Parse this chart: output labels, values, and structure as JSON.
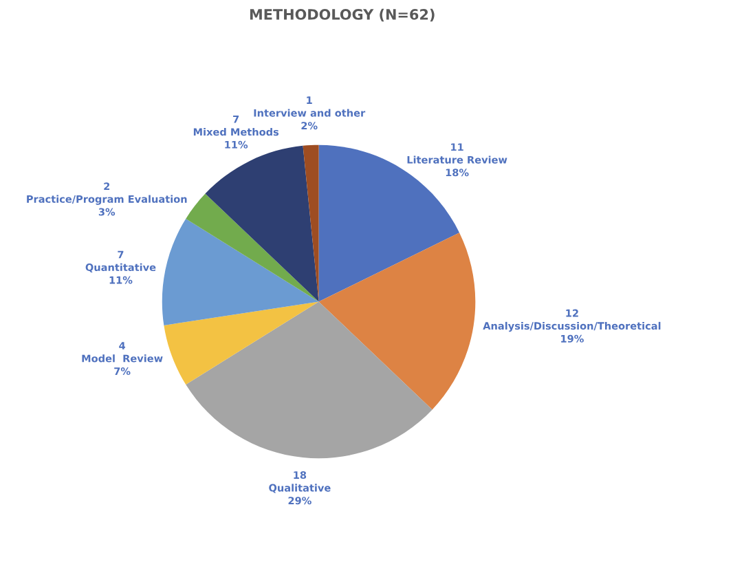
{
  "chart_data": {
    "type": "pie",
    "title": "METHODOLOGY (N=62)",
    "categories": [
      "Literature Review",
      "Analysis/Discussion/Theoretical",
      "Qualitative",
      "Model  Review",
      "Quantitative",
      "Practice/Program Evaluation",
      "Mixed Methods",
      "Interview and other"
    ],
    "values": [
      11,
      12,
      18,
      4,
      7,
      2,
      7,
      1
    ],
    "colors": [
      "#4f71be",
      "#dd8344",
      "#a5a5a5",
      "#f3c243",
      "#6b9bd2",
      "#72ab4d",
      "#2e3f72",
      "#9e4d22"
    ],
    "data_labels": true,
    "annotations": [
      "18%",
      "19%",
      "29%",
      "7%",
      "11%",
      "3%",
      "11%",
      "2%"
    ]
  }
}
